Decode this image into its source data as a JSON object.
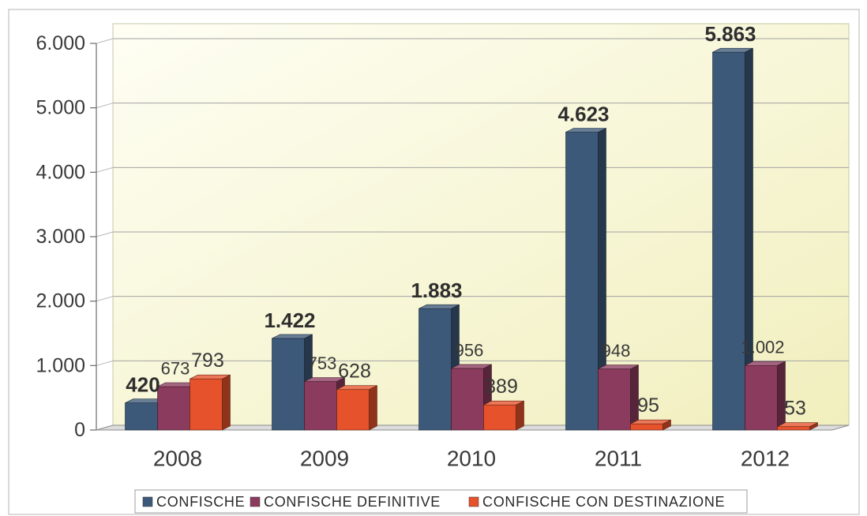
{
  "chart_data": {
    "type": "bar",
    "three_d": true,
    "categories": [
      "2008",
      "2009",
      "2010",
      "2011",
      "2012"
    ],
    "ylim": [
      0,
      6000
    ],
    "yticks": [
      0,
      1000,
      2000,
      3000,
      4000,
      5000,
      6000
    ],
    "ytick_labels": [
      "0",
      "1.000",
      "2.000",
      "3.000",
      "4.000",
      "5.000",
      "6.000"
    ],
    "grid": true,
    "legend": "bottom",
    "series": [
      {
        "name": "CONFISCHE",
        "color": "#3d5979",
        "values": [
          420,
          1422,
          1883,
          4623,
          5863
        ],
        "labels": [
          "420",
          "1.422",
          "1.883",
          "4.623",
          "5.863"
        ]
      },
      {
        "name": "CONFISCHE DEFINITIVE",
        "color": "#8b3b5d",
        "values": [
          673,
          753,
          956,
          948,
          1002
        ],
        "labels": [
          "673",
          "753",
          "956",
          "948",
          "1.002"
        ]
      },
      {
        "name": "CONFISCHE CON DESTINAZIONE",
        "color": "#e6522b",
        "values": [
          793,
          628,
          389,
          95,
          53
        ],
        "labels": [
          "793",
          "628",
          "389",
          "95",
          "53"
        ]
      }
    ]
  }
}
